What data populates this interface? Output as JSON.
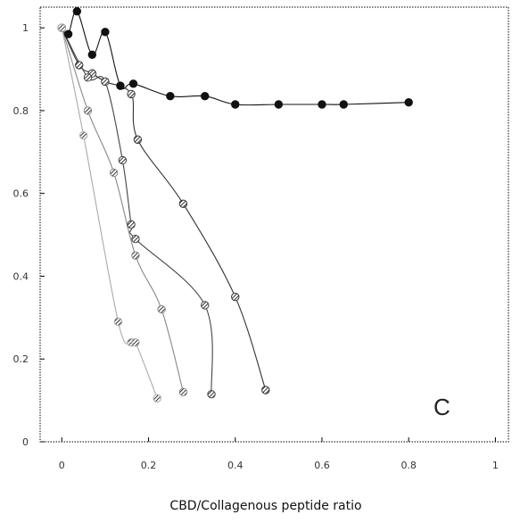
{
  "chart_data": {
    "type": "scatter",
    "title": "",
    "xlabel": "CBD/Collagenous peptide ratio",
    "ylabel": "",
    "panel_label": "C",
    "xlim": [
      -0.05,
      1.03
    ],
    "ylim": [
      0,
      1.05
    ],
    "x_ticks": [
      0,
      0.2,
      0.4,
      0.6,
      0.8,
      1
    ],
    "x_tick_labels": [
      "0",
      "0.2",
      "0.4",
      "0.6",
      "0.8",
      "1"
    ],
    "y_ticks": [
      0,
      0.2,
      0.4,
      0.6,
      0.8,
      1
    ],
    "y_tick_labels": [
      "0",
      "0.2",
      "0.4",
      "0.6",
      "0.8",
      "1"
    ],
    "grid": false,
    "series": [
      {
        "color": "#111111",
        "marker": "filled",
        "x": [
          0.0,
          0.015,
          0.035,
          0.07,
          0.1,
          0.135,
          0.165,
          0.25,
          0.33,
          0.4,
          0.5,
          0.6,
          0.65,
          0.8
        ],
        "y": [
          1.0,
          0.985,
          1.04,
          0.935,
          0.99,
          0.86,
          0.865,
          0.835,
          0.835,
          0.815,
          0.815,
          0.815,
          0.815,
          0.82
        ]
      },
      {
        "color": "#333333",
        "marker": "hatched",
        "x": [
          0.0,
          0.04,
          0.07,
          0.1,
          0.16,
          0.175,
          0.28,
          0.4,
          0.47
        ],
        "y": [
          1.0,
          0.91,
          0.89,
          0.87,
          0.84,
          0.73,
          0.575,
          0.35,
          0.125
        ]
      },
      {
        "color": "#444444",
        "marker": "hatched",
        "x": [
          0.0,
          0.06,
          0.1,
          0.14,
          0.16,
          0.17,
          0.33,
          0.345
        ],
        "y": [
          1.0,
          0.88,
          0.87,
          0.68,
          0.525,
          0.49,
          0.33,
          0.115
        ]
      },
      {
        "color": "#888888",
        "marker": "hatched",
        "x": [
          0.0,
          0.06,
          0.12,
          0.17,
          0.23,
          0.28
        ],
        "y": [
          1.0,
          0.8,
          0.65,
          0.45,
          0.32,
          0.12
        ]
      },
      {
        "color": "#aaaaaa",
        "marker": "hatched",
        "x": [
          0.0,
          0.05,
          0.13,
          0.16,
          0.17,
          0.22
        ],
        "y": [
          1.0,
          0.74,
          0.29,
          0.24,
          0.24,
          0.105
        ]
      }
    ]
  }
}
